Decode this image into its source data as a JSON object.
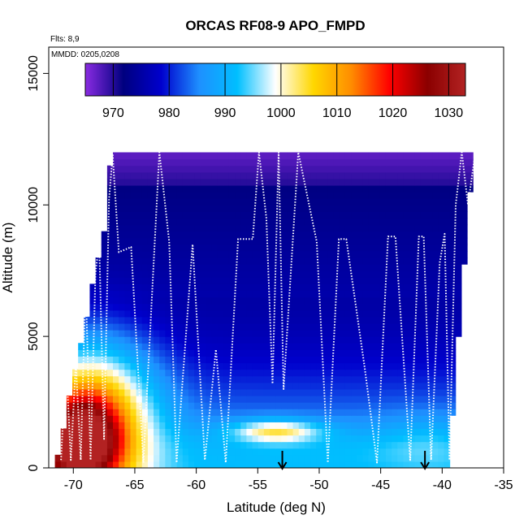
{
  "chart_data": {
    "type": "heatmap",
    "title": "ORCAS RF08-9 APO_FMPD",
    "flights_note": "Flts: 8,9",
    "dates_note": "MMDD: 0205,0208",
    "xlabel": "Latitude (deg N)",
    "ylabel": "Altitude (m)",
    "xlim": [
      -72,
      -35
    ],
    "ylim": [
      0,
      16000
    ],
    "x_ticks": [
      -70,
      -65,
      -60,
      -55,
      -50,
      -45,
      -40,
      -35
    ],
    "y_ticks": [
      0,
      5000,
      10000,
      15000
    ],
    "colorbar": {
      "range": [
        965,
        1033
      ],
      "ticks": [
        970,
        980,
        990,
        1000,
        1010,
        1020,
        1030
      ],
      "colors": [
        "#8a2be2",
        "#00007f",
        "#0000cd",
        "#1e90ff",
        "#00bfff",
        "#ffffff",
        "#ffd700",
        "#ff8c00",
        "#ff0000",
        "#8b0000",
        "#b22222"
      ]
    },
    "data_region": {
      "lat_left_bottom": -71.5,
      "lat_left_top": -67.5,
      "lat_right": -37.5,
      "alt_top": 12000
    },
    "field_anomalies": [
      {
        "lat": -69.5,
        "alt": 700,
        "sigma_lat": 2.3,
        "sigma_alt": 1200,
        "value": 1028
      },
      {
        "lat": -68.5,
        "alt": 1800,
        "sigma_lat": 3.5,
        "sigma_alt": 2000,
        "value": 1012
      },
      {
        "lat": -53.5,
        "alt": 1400,
        "sigma_lat": 2.5,
        "sigma_alt": 300,
        "value": 1002
      },
      {
        "lat": -51.0,
        "alt": 400,
        "sigma_lat": 9.0,
        "sigma_alt": 700,
        "value": 992
      },
      {
        "lat": -41.0,
        "alt": 400,
        "sigma_lat": 3.0,
        "sigma_alt": 900,
        "value": 993
      }
    ],
    "flight_track": {
      "lat": [
        -71.0,
        -70.6,
        -70.2,
        -69.8,
        -69.4,
        -69.0,
        -68.6,
        -68.2,
        -67.9,
        -67.5,
        -67.1,
        -66.8,
        -66.3,
        -65.3,
        -64.3,
        -63.0,
        -62.2,
        -61.6,
        -60.3,
        -59.3,
        -58.4,
        -57.6,
        -56.6,
        -55.4,
        -54.9,
        -54.3,
        -53.8,
        -53.3,
        -52.9,
        -51.7,
        -50.2,
        -49.3,
        -48.4,
        -47.8,
        -46.3,
        -45.3,
        -44.4,
        -43.8,
        -42.6,
        -41.9,
        -41.5,
        -40.9,
        -40.2,
        -39.8,
        -39.4,
        -38.9,
        -38.4,
        -37.9,
        -37.3
      ],
      "alt": [
        300,
        4100,
        300,
        4000,
        300,
        7100,
        300,
        7400,
        8600,
        1100,
        10200,
        11900,
        8200,
        8400,
        200,
        12000,
        8600,
        200,
        8500,
        300,
        4500,
        200,
        8700,
        8700,
        12000,
        9500,
        3200,
        12000,
        3000,
        12000,
        8600,
        200,
        8700,
        8700,
        3800,
        200,
        8800,
        8800,
        300,
        8800,
        8800,
        300,
        7800,
        8900,
        300,
        10000,
        12000,
        10000,
        12000
      ]
    },
    "arrows_lat": [
      -53.0,
      -41.4
    ]
  }
}
